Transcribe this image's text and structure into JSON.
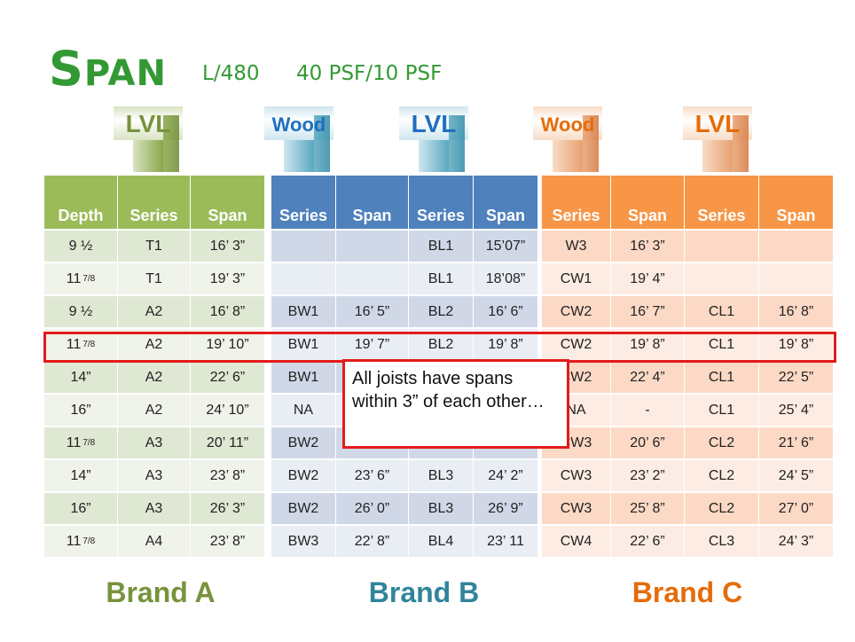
{
  "title": {
    "first": "S",
    "rest": "PAN"
  },
  "subtitle": {
    "deflection": "L/480",
    "load": "40 PSF/10 PSF"
  },
  "joist_icons": [
    {
      "label": "LVL",
      "brand": "A",
      "color": "#77933c"
    },
    {
      "label": "Wood",
      "brand": "B",
      "color": "#1f6fbf"
    },
    {
      "label": "LVL",
      "brand": "B",
      "color": "#1f6fbf"
    },
    {
      "label": "Wood",
      "brand": "C",
      "color": "#e46c0a"
    },
    {
      "label": "LVL",
      "brand": "C",
      "color": "#e46c0a"
    }
  ],
  "tables": {
    "a": {
      "header_color": "#9bbb59",
      "row_colors": [
        "#dfe8d3",
        "#eff3ea"
      ],
      "headers": [
        "Depth",
        "Series",
        "Span"
      ],
      "rows": [
        [
          {
            "whole": "9 ½",
            "frac": ""
          },
          "T1",
          "16’ 3”"
        ],
        [
          {
            "whole": "11",
            "frac": "7/8"
          },
          "T1",
          "19’ 3”"
        ],
        [
          {
            "whole": "9 ½",
            "frac": ""
          },
          "A2",
          "16’ 8”"
        ],
        [
          {
            "whole": "11",
            "frac": "7/8"
          },
          "A2",
          "19’ 10”"
        ],
        [
          {
            "whole": "14”",
            "frac": ""
          },
          "A2",
          "22’ 6”"
        ],
        [
          {
            "whole": "16”",
            "frac": ""
          },
          "A2",
          "24’ 10”"
        ],
        [
          {
            "whole": "11",
            "frac": "7/8"
          },
          "A3",
          "20’ 11”"
        ],
        [
          {
            "whole": "14”",
            "frac": ""
          },
          "A3",
          "23’ 8”"
        ],
        [
          {
            "whole": "16”",
            "frac": ""
          },
          "A3",
          "26’ 3”"
        ],
        [
          {
            "whole": "11",
            "frac": "7/8"
          },
          "A4",
          "23’ 8”"
        ]
      ]
    },
    "b": {
      "header_color": "#4f81bd",
      "row_colors": [
        "#d0d8e8",
        "#e9edf4"
      ],
      "headers": [
        "Series",
        "Span",
        "Series",
        "Span"
      ],
      "rows": [
        [
          "",
          "",
          "BL1",
          "15’07”"
        ],
        [
          "",
          "",
          "BL1",
          "18’08”"
        ],
        [
          "BW1",
          "16’ 5”",
          "BL2",
          "16’ 6”"
        ],
        [
          "BW1",
          "19’ 7”",
          "BL2",
          "19’ 8”"
        ],
        [
          "BW1",
          "",
          "",
          ""
        ],
        [
          "NA",
          "",
          "",
          ""
        ],
        [
          "BW2",
          "",
          "",
          ""
        ],
        [
          "BW2",
          "23’ 6”",
          "BL3",
          "24’ 2”"
        ],
        [
          "BW2",
          "26’ 0”",
          "BL3",
          "26’ 9”"
        ],
        [
          "BW3",
          "22’ 8”",
          "BL4",
          "23’ 11"
        ]
      ]
    },
    "c": {
      "header_color": "#f79646",
      "row_colors": [
        "#fcd9c5",
        "#fdece3"
      ],
      "headers": [
        "Series",
        "Span",
        "Series",
        "Span"
      ],
      "rows": [
        [
          "W3",
          "16’ 3”",
          "",
          ""
        ],
        [
          "CW1",
          "19’ 4”",
          "",
          ""
        ],
        [
          "CW2",
          "16’ 7”",
          "CL1",
          "16’ 8”"
        ],
        [
          "CW2",
          "19’ 8”",
          "CL1",
          "19’ 8”"
        ],
        [
          "CW2",
          "22’ 4”",
          "CL1",
          "22’ 5”"
        ],
        [
          "NA",
          "-",
          "CL1",
          "25’ 4”"
        ],
        [
          "CW3",
          "20’ 6”",
          "CL2",
          "21’ 6”"
        ],
        [
          "CW3",
          "23’ 2”",
          "CL2",
          "24’ 5”"
        ],
        [
          "CW3",
          "25’ 8”",
          "CL2",
          "27’ 0”"
        ],
        [
          "CW4",
          "22’ 6”",
          "CL3",
          "24’ 3”"
        ]
      ]
    }
  },
  "callout": {
    "text": "All joists have spans within 3” of each other…",
    "border_color": "#e31b1b"
  },
  "brands": [
    {
      "label": "Brand A",
      "color": "#77933c"
    },
    {
      "label": "Brand B",
      "color": "#31849b"
    },
    {
      "label": "Brand C",
      "color": "#e46c0a"
    }
  ]
}
